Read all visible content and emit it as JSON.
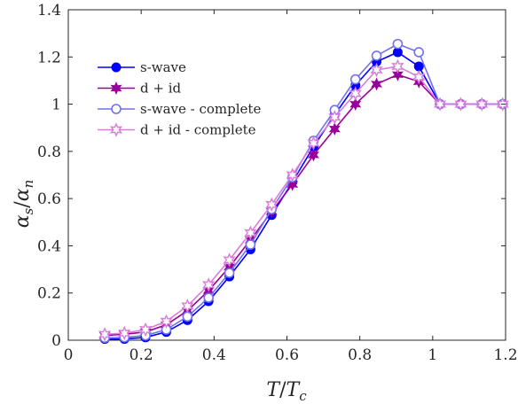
{
  "chart_data": {
    "type": "line",
    "xlabel": "T/T_c",
    "ylabel": "α_s/α_n",
    "xlim": [
      0,
      1.2
    ],
    "ylim": [
      0,
      1.4
    ],
    "xticks": [
      0,
      0.2,
      0.4,
      0.6,
      0.8,
      1,
      1.2
    ],
    "xtick_labels": [
      "0",
      "0.2",
      "0.4",
      "0.6",
      "0.8",
      "1",
      "1.2"
    ],
    "yticks": [
      0,
      0.2,
      0.4,
      0.6,
      0.8,
      1,
      1.2,
      1.4
    ],
    "ytick_labels": [
      "0",
      "0.2",
      "0.4",
      "0.6",
      "0.8",
      "1",
      "1.2",
      "1.4"
    ],
    "grid": false,
    "legend_position": "top-left",
    "series": [
      {
        "name": "s-wave",
        "color": "#0000ff",
        "marker": "filled-circle",
        "x": [
          0.1,
          0.154,
          0.212,
          0.269,
          0.327,
          0.385,
          0.442,
          0.5,
          0.558,
          0.615,
          0.673,
          0.731,
          0.788,
          0.846,
          0.904,
          0.962,
          1.02,
          1.077,
          1.135,
          1.192
        ],
        "y": [
          0.005,
          0.005,
          0.012,
          0.035,
          0.085,
          0.165,
          0.27,
          0.385,
          0.53,
          0.67,
          0.82,
          0.955,
          1.08,
          1.18,
          1.22,
          1.16,
          1.0,
          1.0,
          1.0,
          1.0
        ]
      },
      {
        "name": "d + id",
        "color": "#990099",
        "marker": "filled-star",
        "x": [
          0.1,
          0.154,
          0.212,
          0.269,
          0.327,
          0.385,
          0.442,
          0.5,
          0.558,
          0.615,
          0.673,
          0.731,
          0.788,
          0.846,
          0.904,
          0.962,
          1.02,
          1.077,
          1.135,
          1.192
        ],
        "y": [
          0.02,
          0.025,
          0.035,
          0.065,
          0.125,
          0.21,
          0.31,
          0.425,
          0.545,
          0.66,
          0.785,
          0.895,
          1.0,
          1.085,
          1.125,
          1.095,
          1.0,
          1.0,
          1.0,
          1.0
        ]
      },
      {
        "name": "s-wave - complete",
        "color": "#7070f0",
        "marker": "open-circle",
        "x": [
          0.1,
          0.154,
          0.212,
          0.269,
          0.327,
          0.385,
          0.442,
          0.5,
          0.558,
          0.615,
          0.673,
          0.731,
          0.788,
          0.846,
          0.904,
          0.962,
          1.02,
          1.077,
          1.135,
          1.192
        ],
        "y": [
          0.01,
          0.012,
          0.02,
          0.045,
          0.1,
          0.18,
          0.285,
          0.405,
          0.555,
          0.69,
          0.845,
          0.975,
          1.105,
          1.205,
          1.255,
          1.22,
          1.0,
          1.0,
          1.0,
          1.0
        ]
      },
      {
        "name": "d + id - complete",
        "color": "#d97cd9",
        "marker": "open-star",
        "x": [
          0.1,
          0.154,
          0.212,
          0.269,
          0.327,
          0.385,
          0.442,
          0.5,
          0.558,
          0.615,
          0.673,
          0.731,
          0.788,
          0.846,
          0.904,
          0.962,
          1.02,
          1.077,
          1.135,
          1.192
        ],
        "y": [
          0.025,
          0.03,
          0.045,
          0.08,
          0.145,
          0.235,
          0.34,
          0.455,
          0.575,
          0.7,
          0.835,
          0.945,
          1.045,
          1.145,
          1.16,
          1.115,
          1.0,
          1.0,
          1.0,
          1.0
        ]
      }
    ]
  }
}
